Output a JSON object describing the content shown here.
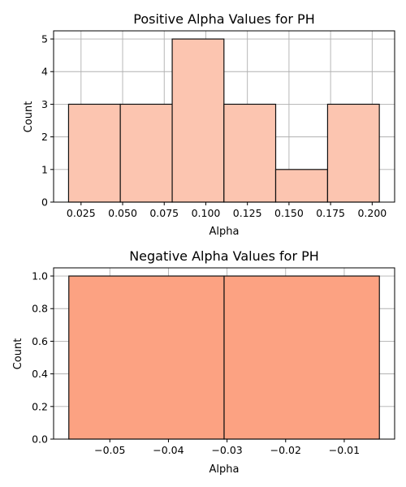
{
  "colors": {
    "positive_fill": "#fcc5b0",
    "negative_fill": "#fca282",
    "bar_edge": "#111111",
    "grid": "#b0b0b0"
  },
  "chart_data": [
    {
      "type": "bar",
      "title": "Positive Alpha Values for PH",
      "xlabel": "Alpha",
      "ylabel": "Count",
      "grid": true,
      "xlim": [
        0.0085,
        0.2135
      ],
      "ylim": [
        0,
        5.25
      ],
      "bin_edges": [
        0.0175,
        0.0486,
        0.0798,
        0.1109,
        0.142,
        0.1732,
        0.2043
      ],
      "values": [
        3,
        3,
        5,
        3,
        1,
        3
      ],
      "xticks": [
        0.025,
        0.05,
        0.075,
        0.1,
        0.125,
        0.15,
        0.175,
        0.2
      ],
      "xtick_labels": [
        "0.025",
        "0.050",
        "0.075",
        "0.100",
        "0.125",
        "0.150",
        "0.175",
        "0.200"
      ],
      "yticks": [
        0,
        1,
        2,
        3,
        4,
        5
      ],
      "ytick_labels": [
        "0",
        "1",
        "2",
        "3",
        "4",
        "5"
      ]
    },
    {
      "type": "bar",
      "title": "Negative Alpha Values for PH",
      "xlabel": "Alpha",
      "ylabel": "Count",
      "grid": true,
      "xlim": [
        -0.0596,
        -0.0014
      ],
      "ylim": [
        0,
        1.05
      ],
      "bin_edges": [
        -0.057,
        -0.0305,
        -0.004
      ],
      "values": [
        1,
        1
      ],
      "xticks": [
        -0.05,
        -0.04,
        -0.03,
        -0.02,
        -0.01
      ],
      "xtick_labels": [
        "−0.05",
        "−0.04",
        "−0.03",
        "−0.02",
        "−0.01"
      ],
      "yticks": [
        0,
        0.2,
        0.4,
        0.6,
        0.8,
        1.0
      ],
      "ytick_labels": [
        "0.0",
        "0.2",
        "0.4",
        "0.6",
        "0.8",
        "1.0"
      ]
    }
  ]
}
